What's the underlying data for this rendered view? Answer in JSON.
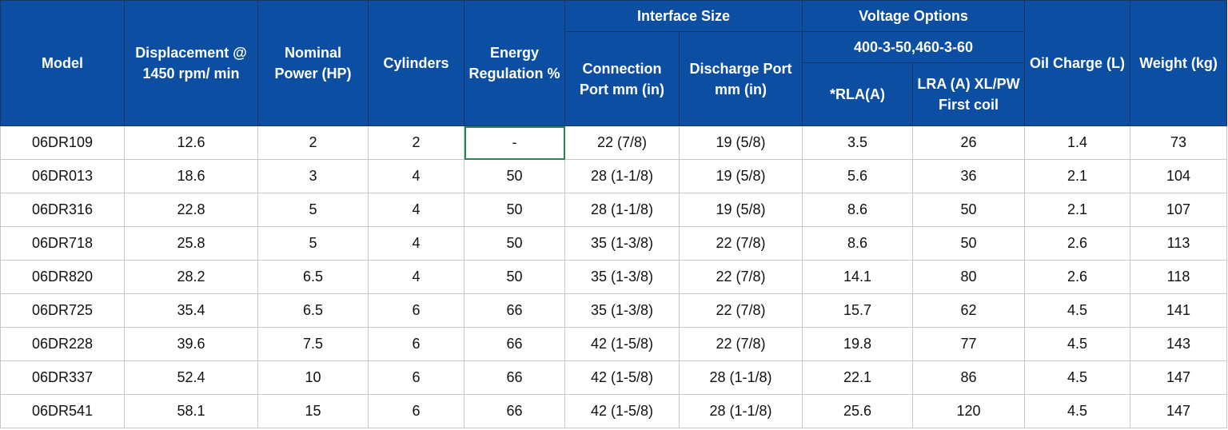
{
  "table": {
    "headers": {
      "model": "Model",
      "displacement": "Displacement @ 1450 rpm/ min",
      "nominal_power": "Nominal Power (HP)",
      "cylinders": "Cylinders",
      "energy_regulation": "Energy Regulation %",
      "interface_size": "Interface Size",
      "connection_port": "Connection Port mm (in)",
      "discharge_port": "Discharge Port mm (in)",
      "voltage_options": "Voltage Options",
      "voltage": "400-3-50,460-3-60",
      "rla": "*RLA(A)",
      "lra": "LRA (A) XL/PW First coil",
      "oil_charge": "Oil Charge (L)",
      "weight": "Weight (kg)"
    },
    "rows": [
      [
        "06DR109",
        "12.6",
        "2",
        "2",
        "-",
        "22 (7/8)",
        "19 (5/8)",
        "3.5",
        "26",
        "1.4",
        "73"
      ],
      [
        "06DR013",
        "18.6",
        "3",
        "4",
        "50",
        "28 (1-1/8)",
        "19 (5/8)",
        "5.6",
        "36",
        "2.1",
        "104"
      ],
      [
        "06DR316",
        "22.8",
        "5",
        "4",
        "50",
        "28 (1-1/8)",
        "19 (5/8)",
        "8.6",
        "50",
        "2.1",
        "107"
      ],
      [
        "06DR718",
        "25.8",
        "5",
        "4",
        "50",
        "35 (1-3/8)",
        "22 (7/8)",
        "8.6",
        "50",
        "2.6",
        "113"
      ],
      [
        "06DR820",
        "28.2",
        "6.5",
        "4",
        "50",
        "35 (1-3/8)",
        "22 (7/8)",
        "14.1",
        "80",
        "2.6",
        "118"
      ],
      [
        "06DR725",
        "35.4",
        "6.5",
        "6",
        "66",
        "35 (1-3/8)",
        "22 (7/8)",
        "15.7",
        "62",
        "4.5",
        "141"
      ],
      [
        "06DR228",
        "39.6",
        "7.5",
        "6",
        "66",
        "42 (1-5/8)",
        "22 (7/8)",
        "19.8",
        "77",
        "4.5",
        "143"
      ],
      [
        "06DR337",
        "52.4",
        "10",
        "6",
        "66",
        "42 (1-5/8)",
        "28 (1-1/8)",
        "22.1",
        "86",
        "4.5",
        "147"
      ],
      [
        "06DR541",
        "58.1",
        "15",
        "6",
        "66",
        "42 (1-5/8)",
        "28 (1-1/8)",
        "25.6",
        "120",
        "4.5",
        "147"
      ]
    ]
  }
}
